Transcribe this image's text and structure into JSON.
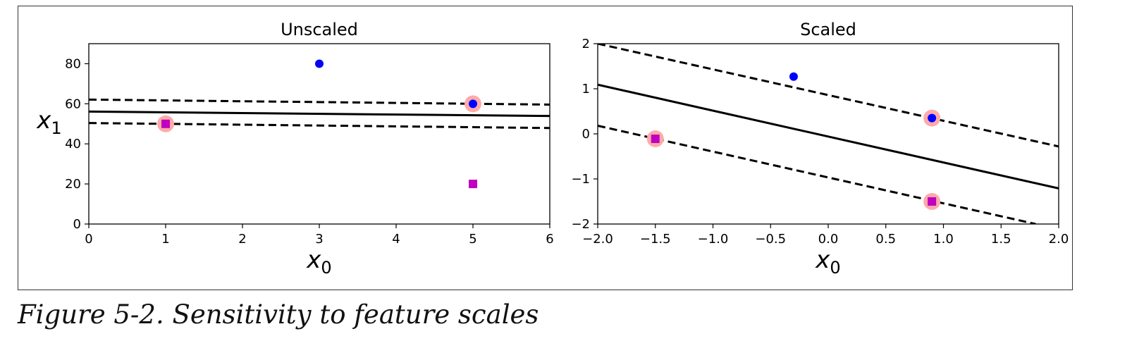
{
  "figure": {
    "caption": "Figure 5-2. Sensitivity to feature scales"
  },
  "chart_data": [
    {
      "type": "scatter",
      "title": "Unscaled",
      "xlabel": "x0",
      "ylabel": "x1",
      "xlim": [
        0,
        6
      ],
      "ylim": [
        0,
        90
      ],
      "xticks": [
        0,
        1,
        2,
        3,
        4,
        5,
        6
      ],
      "xtick_labels": [
        "0",
        "1",
        "2",
        "3",
        "4",
        "5",
        "6"
      ],
      "yticks": [
        0,
        20,
        40,
        60,
        80
      ],
      "ytick_labels": [
        "0",
        "20",
        "40",
        "60",
        "80"
      ],
      "grid": false,
      "points": [
        {
          "x": 1,
          "y": 50,
          "class": "square",
          "color": "#bf00bf",
          "support_vector": true
        },
        {
          "x": 5,
          "y": 20,
          "class": "square",
          "color": "#bf00bf",
          "support_vector": false
        },
        {
          "x": 3,
          "y": 80,
          "class": "circle",
          "color": "#0000ff",
          "support_vector": false
        },
        {
          "x": 5,
          "y": 60,
          "class": "circle",
          "color": "#0000ff",
          "support_vector": true
        }
      ],
      "lines": [
        {
          "role": "decision-boundary",
          "style": "solid",
          "x": [
            0,
            6
          ],
          "y": [
            56.1,
            53.9
          ]
        },
        {
          "role": "upper-margin",
          "style": "dashed",
          "x": [
            0,
            6
          ],
          "y": [
            62.1,
            59.6
          ]
        },
        {
          "role": "lower-margin",
          "style": "dashed",
          "x": [
            0,
            6
          ],
          "y": [
            50.4,
            47.9
          ]
        }
      ],
      "support_vector_color": "#ffaaaa"
    },
    {
      "type": "scatter",
      "title": "Scaled",
      "xlabel": "x0",
      "ylabel": "",
      "xlim": [
        -2.0,
        2.0
      ],
      "ylim": [
        -2,
        2
      ],
      "xticks": [
        -2.0,
        -1.5,
        -1.0,
        -0.5,
        0.0,
        0.5,
        1.0,
        1.5,
        2.0
      ],
      "xtick_labels": [
        "−2.0",
        "−1.5",
        "−1.0",
        "−0.5",
        "0.0",
        "0.5",
        "1.0",
        "1.5",
        "2.0"
      ],
      "yticks": [
        -2,
        -1,
        0,
        1,
        2
      ],
      "ytick_labels": [
        "−2",
        "−1",
        "0",
        "1",
        "2"
      ],
      "grid": false,
      "points": [
        {
          "x": -1.5,
          "y": -0.11,
          "class": "square",
          "color": "#bf00bf",
          "support_vector": true
        },
        {
          "x": 0.9,
          "y": -1.5,
          "class": "square",
          "color": "#bf00bf",
          "support_vector": true
        },
        {
          "x": -0.3,
          "y": 1.27,
          "class": "circle",
          "color": "#0000ff",
          "support_vector": false
        },
        {
          "x": 0.9,
          "y": 0.35,
          "class": "circle",
          "color": "#0000ff",
          "support_vector": true
        }
      ],
      "lines": [
        {
          "role": "decision-boundary",
          "style": "solid",
          "x": [
            -2.0,
            2.0
          ],
          "y": [
            1.09,
            -1.21
          ]
        },
        {
          "role": "upper-margin",
          "style": "dashed",
          "x": [
            -2.0,
            2.0
          ],
          "y": [
            2.0,
            -0.28
          ]
        },
        {
          "role": "lower-margin",
          "style": "dashed",
          "x": [
            -2.0,
            1.8
          ],
          "y": [
            0.18,
            -2.0
          ]
        }
      ],
      "support_vector_color": "#ffaaaa"
    }
  ]
}
